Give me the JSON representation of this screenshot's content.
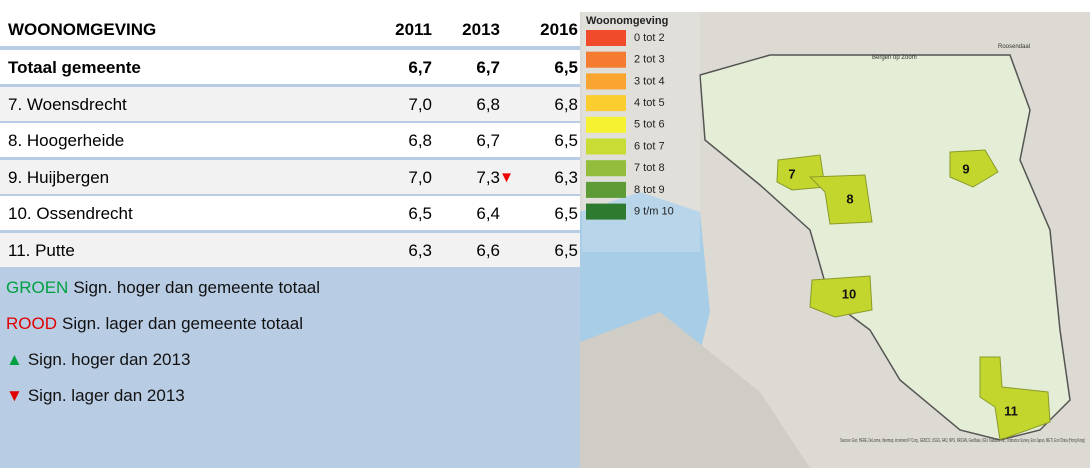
{
  "table": {
    "header": {
      "title": "WOONOMGEVING",
      "years": [
        "2011",
        "2013",
        "2016"
      ]
    },
    "rows": [
      {
        "name": "Totaal gemeente",
        "values": [
          "6,7",
          "6,7",
          "6,5"
        ]
      },
      {
        "name": "7. Woensdrecht",
        "values": [
          "7,0",
          "6,8",
          "6,8"
        ]
      },
      {
        "name": "8. Hoogerheide",
        "values": [
          "6,8",
          "6,7",
          "6,5"
        ]
      },
      {
        "name": "9. Huijbergen",
        "values": [
          "7,0",
          "7,3",
          "6,3"
        ],
        "sign": "▼"
      },
      {
        "name": "10. Ossendrecht",
        "values": [
          "6,5",
          "6,4",
          "6,5"
        ]
      },
      {
        "name": "11. Putte",
        "values": [
          "6,3",
          "6,6",
          "6,5"
        ]
      }
    ]
  },
  "notes": [
    {
      "key": "GROEN",
      "color": "#00a040",
      "text": "Sign. hoger dan gemeente totaal"
    },
    {
      "key": "ROOD",
      "color": "#e00000",
      "text": "Sign. lager dan gemeente totaal"
    },
    {
      "key": "▲",
      "color": "#00a040",
      "text": "Sign. hoger dan 2013"
    },
    {
      "key": "▼",
      "color": "#e00000",
      "text": "Sign. lager dan 2013"
    }
  ],
  "map": {
    "legend": {
      "title": "Woonomgeving",
      "items": [
        {
          "label": "0 tot 2",
          "color": "#f04b2b"
        },
        {
          "label": "2 tot 3",
          "color": "#f57b30"
        },
        {
          "label": "3 tot 4",
          "color": "#f9a530"
        },
        {
          "label": "4 tot 5",
          "color": "#fbcd2e"
        },
        {
          "label": "5 tot 6",
          "color": "#f7f231"
        },
        {
          "label": "6 tot 7",
          "color": "#c8dc35"
        },
        {
          "label": "7 tot 8",
          "color": "#94bd3b"
        },
        {
          "label": "8 tot 9",
          "color": "#5c9b36"
        },
        {
          "label": "9 t/m 10",
          "color": "#2d7b2f"
        }
      ]
    },
    "regions": [
      {
        "label": "7",
        "color": "#c3d62d"
      },
      {
        "label": "8",
        "color": "#c3d62d"
      },
      {
        "label": "9",
        "color": "#c3d62d"
      },
      {
        "label": "10",
        "color": "#c3d62d"
      },
      {
        "label": "11",
        "color": "#c3d62d"
      }
    ],
    "places": [
      "Bergen op Zoom",
      "Roosendaal"
    ],
    "attribution": "Sources: Esri, HERE, DeLorme, Intermap, increment P Corp., GEBCO, USGS, FAO, NPS, NRCAN, GeoBase, IGN, Kadaster NL, Ordnance Survey, Esri Japan, METI, Esri China (Hong Kong)"
  }
}
